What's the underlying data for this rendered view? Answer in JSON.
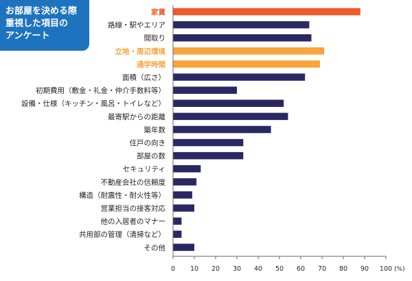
{
  "title": {
    "lines": [
      "お部屋を決める際",
      "重視した項目の",
      "アンケート"
    ]
  },
  "colors": {
    "title_bg": "#1E73BE",
    "highlight_red": "#F05A28",
    "highlight_orange": "#F7A43A",
    "bar_default": "#2A2863",
    "label_default": "#231F20",
    "axis": "#666666"
  },
  "chart_data": {
    "type": "bar",
    "orientation": "horizontal",
    "categories": [
      "家賃",
      "路線・駅やエリア",
      "間取り",
      "立地・周辺環境",
      "通学時間",
      "面積（広さ）",
      "初期費用（敷金・礼金・仲介手数料等）",
      "設備・仕様（キッチン・風呂・トイレなど）",
      "最寄駅からの距離",
      "築年数",
      "住戸の向き",
      "部屋の数",
      "セキュリティ",
      "不動産会社の信頼度",
      "構造（耐震性・耐火性等）",
      "営業担当の接客対応",
      "他の入居者のマナー",
      "共用部の管理（清掃など）",
      "その他"
    ],
    "values": [
      88,
      64,
      65,
      71,
      69,
      62,
      30,
      52,
      54,
      46,
      33,
      33,
      13,
      11,
      9,
      10,
      4,
      4,
      10
    ],
    "highlight": [
      "red",
      "none",
      "none",
      "orange",
      "orange",
      "none",
      "none",
      "none",
      "none",
      "none",
      "none",
      "none",
      "none",
      "none",
      "none",
      "none",
      "none",
      "none",
      "none"
    ],
    "xlim": [
      0,
      100
    ],
    "xticks": [
      "0",
      "10",
      "20",
      "30",
      "40",
      "50",
      "60",
      "70",
      "80",
      "90",
      "100"
    ],
    "unit": "(%)"
  }
}
